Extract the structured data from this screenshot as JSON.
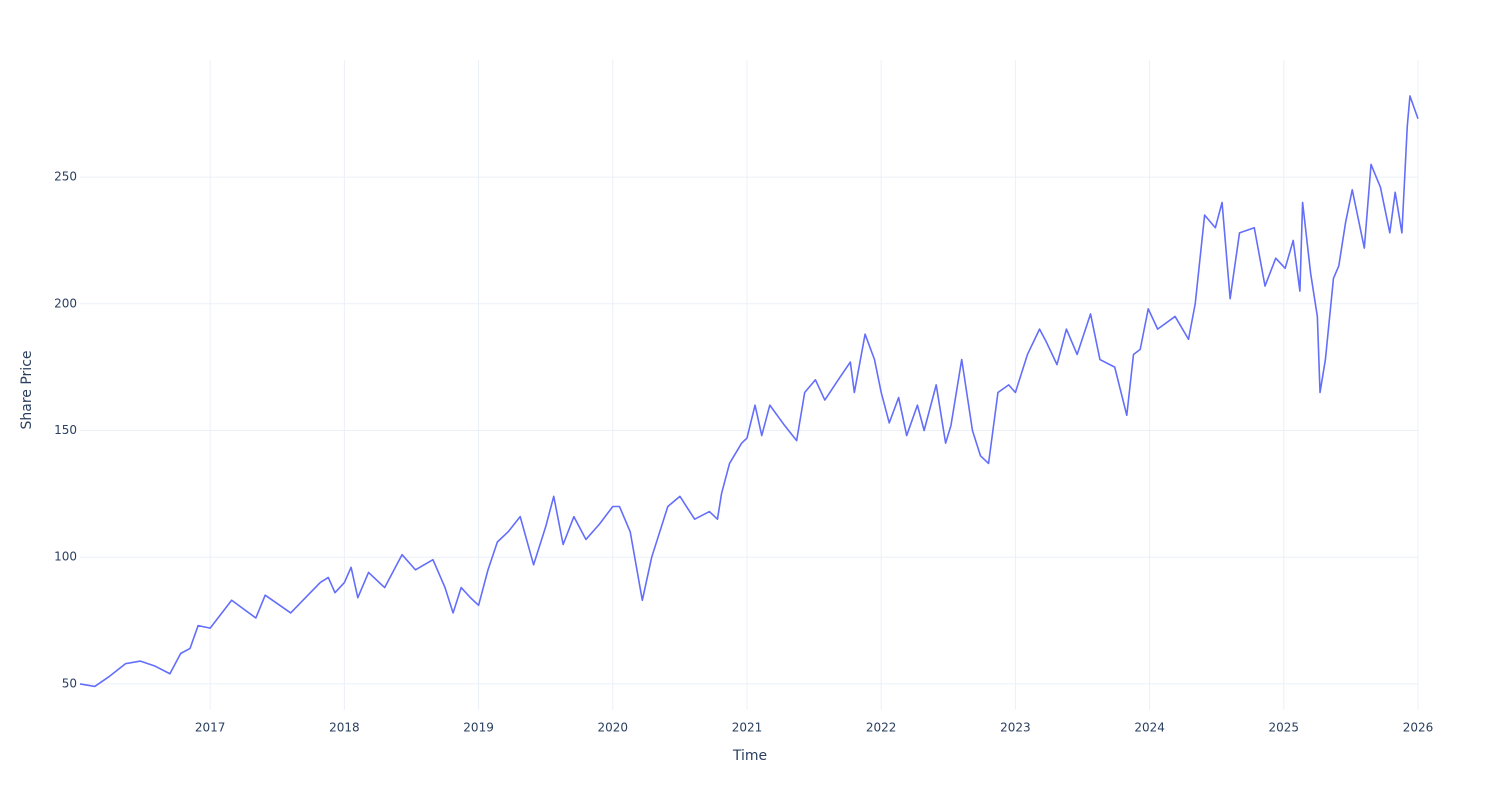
{
  "chart_data": {
    "type": "line",
    "x_label": "Time",
    "y_label": "Share Price",
    "xlim": [
      2016.03,
      2026.0
    ],
    "xticks": [
      2017,
      2018,
      2019,
      2020,
      2021,
      2022,
      2023,
      2024,
      2025,
      2026
    ],
    "ylim": [
      39.7,
      296.2
    ],
    "yticks": [
      50,
      100,
      150,
      200,
      250
    ],
    "grid": true,
    "x": [
      2016.03,
      2016.14,
      2016.25,
      2016.37,
      2016.48,
      2016.59,
      2016.7,
      2016.78,
      2016.85,
      2016.91,
      2017.0,
      2017.16,
      2017.34,
      2017.41,
      2017.6,
      2017.71,
      2017.82,
      2017.88,
      2017.93,
      2018.0,
      2018.05,
      2018.1,
      2018.18,
      2018.3,
      2018.43,
      2018.53,
      2018.66,
      2018.75,
      2018.81,
      2018.87,
      2018.94,
      2019.0,
      2019.07,
      2019.14,
      2019.22,
      2019.31,
      2019.41,
      2019.5,
      2019.56,
      2019.63,
      2019.71,
      2019.8,
      2019.9,
      2020.0,
      2020.05,
      2020.13,
      2020.22,
      2020.29,
      2020.41,
      2020.5,
      2020.61,
      2020.72,
      2020.78,
      2020.81,
      2020.87,
      2020.96,
      2021.0,
      2021.06,
      2021.11,
      2021.17,
      2021.28,
      2021.37,
      2021.43,
      2021.51,
      2021.58,
      2021.68,
      2021.77,
      2021.8,
      2021.88,
      2021.95,
      2022.0,
      2022.06,
      2022.13,
      2022.19,
      2022.27,
      2022.32,
      2022.41,
      2022.48,
      2022.52,
      2022.6,
      2022.68,
      2022.74,
      2022.8,
      2022.87,
      2022.95,
      2023.0,
      2023.09,
      2023.18,
      2023.23,
      2023.31,
      2023.38,
      2023.46,
      2023.56,
      2023.63,
      2023.74,
      2023.83,
      2023.88,
      2023.93,
      2023.99,
      2024.06,
      2024.19,
      2024.29,
      2024.34,
      2024.41,
      2024.49,
      2024.54,
      2024.6,
      2024.67,
      2024.78,
      2024.86,
      2024.94,
      2025.01,
      2025.07,
      2025.12,
      2025.14,
      2025.2,
      2025.25,
      2025.27,
      2025.31,
      2025.37,
      2025.41,
      2025.46,
      2025.51,
      2025.6,
      2025.65,
      2025.72,
      2025.79,
      2025.83,
      2025.88,
      2025.92,
      2025.94,
      2026.0
    ],
    "series": [
      {
        "color": "#636efa",
        "values": [
          50,
          49,
          53,
          58,
          59,
          57,
          54,
          62,
          64,
          73,
          72,
          83,
          76,
          85,
          78,
          84,
          90,
          92,
          86,
          90,
          96,
          84,
          94,
          88,
          101,
          95,
          99,
          88,
          78,
          88,
          84,
          81,
          95,
          106,
          110,
          116,
          97,
          112,
          124,
          105,
          116,
          107,
          113,
          120,
          120,
          110,
          83,
          100,
          120,
          124,
          115,
          118,
          115,
          125,
          137,
          145,
          147,
          160,
          148,
          160,
          152,
          146,
          165,
          170,
          162,
          170,
          177,
          165,
          188,
          178,
          165,
          153,
          163,
          148,
          160,
          150,
          168,
          145,
          152,
          178,
          150,
          140,
          137,
          165,
          168,
          165,
          180,
          190,
          185,
          176,
          190,
          180,
          196,
          178,
          175,
          156,
          180,
          182,
          198,
          190,
          195,
          186,
          200,
          235,
          230,
          240,
          202,
          228,
          230,
          207,
          218,
          214,
          225,
          205,
          240,
          212,
          195,
          165,
          178,
          210,
          215,
          232,
          245,
          222,
          255,
          246,
          228,
          244,
          228,
          270,
          282,
          273
        ]
      }
    ]
  }
}
